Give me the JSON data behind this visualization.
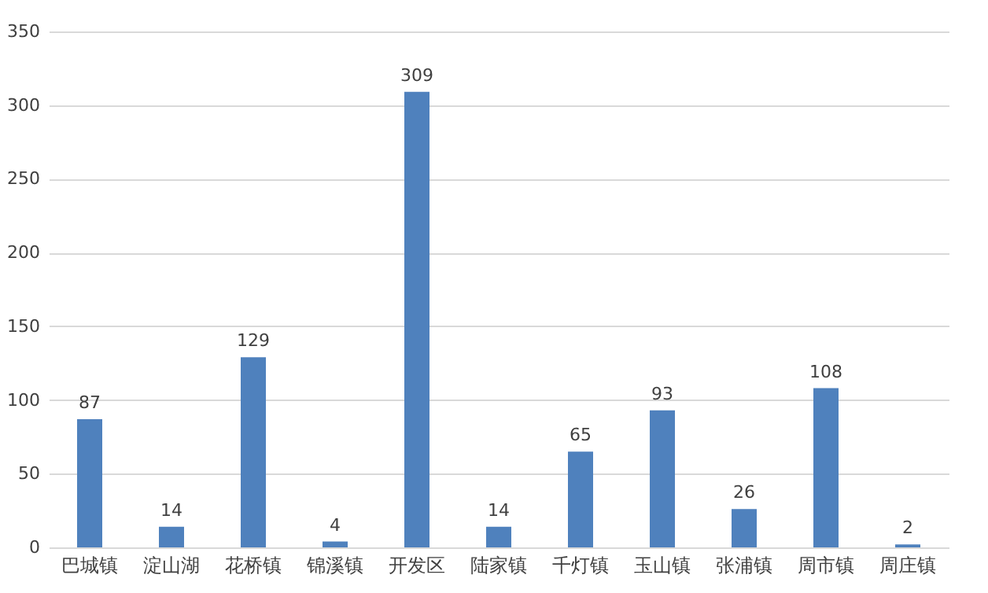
{
  "chart_data": {
    "type": "bar",
    "categories": [
      "巴城镇",
      "淀山湖",
      "花桥镇",
      "锦溪镇",
      "开发区",
      "陆家镇",
      "千灯镇",
      "玉山镇",
      "张浦镇",
      "周市镇",
      "周庄镇"
    ],
    "values": [
      87,
      14,
      129,
      4,
      309,
      14,
      65,
      93,
      26,
      108,
      2
    ],
    "color": "#4f81bd",
    "ylim": [
      0,
      350
    ],
    "yticks": [
      0,
      50,
      100,
      150,
      200,
      250,
      300,
      350
    ],
    "grid": "y",
    "data_labels": true
  }
}
